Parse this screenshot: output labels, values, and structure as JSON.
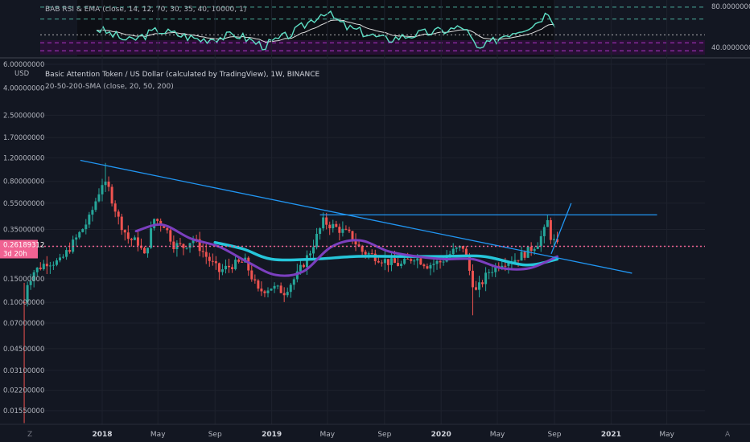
{
  "rsi_pane": {
    "legend": "BAB RSI & EMA (close, 14, 12, 70, 30, 35, 40, 10000, 1)",
    "axis_labels": [
      "80.00000000",
      "40.00000000"
    ]
  },
  "main_pane": {
    "axis_unit": "USD",
    "title": "Basic Attention Token / US Dollar (calculated by TradingView), 1W, BINANCE",
    "indicator": "20-50-200-SMA (close, 20, 50, 200)",
    "last_price": "0.26189312",
    "countdown": "3d 20h",
    "corner_left": "Z",
    "corner_right": "A"
  },
  "colors": {
    "background": "#131722",
    "up": "#26a69a",
    "down": "#ef5350",
    "sma20": "#7b3fbf",
    "sma50": "#26c6da",
    "trendline": "#2196f3",
    "price_line": "#f06292",
    "rsi": "#5ee0c6",
    "rsi_ema": "#e0e0e0",
    "rsi_band": "#4a1a5a"
  },
  "chart_data": {
    "type": "candlestick",
    "scale": "log",
    "ylim": [
      0.012,
      6.0
    ],
    "y_ticks": [
      "6.00000000",
      "4.00000000",
      "2.50000000",
      "1.70000000",
      "1.20000000",
      "0.80000000",
      "0.55000000",
      "0.35000000",
      "0.26189312",
      "0.15000000",
      "0.10000000",
      "0.07000000",
      "0.04500000",
      "0.03100000",
      "0.02200000",
      "0.01550000"
    ],
    "y_tick_values": [
      6.0,
      4.0,
      2.5,
      1.7,
      1.2,
      0.8,
      0.55,
      0.35,
      0.26189312,
      0.15,
      0.1,
      0.07,
      0.045,
      0.031,
      0.022,
      0.0155
    ],
    "x_ticks": [
      {
        "label": "2018",
        "date": "2018-01-01"
      },
      {
        "label": "May",
        "date": "2018-05-01"
      },
      {
        "label": "Sep",
        "date": "2018-09-01"
      },
      {
        "label": "2019",
        "date": "2019-01-01"
      },
      {
        "label": "May",
        "date": "2019-05-01"
      },
      {
        "label": "Sep",
        "date": "2019-09-01"
      },
      {
        "label": "2020",
        "date": "2020-01-01"
      },
      {
        "label": "May",
        "date": "2020-05-01"
      },
      {
        "label": "Sep",
        "date": "2020-09-01"
      },
      {
        "label": "2021",
        "date": "2021-01-01"
      },
      {
        "label": "May",
        "date": "2021-05-01"
      }
    ],
    "close_path": [
      {
        "date": "2017-07-17",
        "v": 0.1
      },
      {
        "date": "2017-07-24",
        "v": 0.14
      },
      {
        "date": "2017-08-07",
        "v": 0.17
      },
      {
        "date": "2017-09-04",
        "v": 0.2
      },
      {
        "date": "2017-10-02",
        "v": 0.2
      },
      {
        "date": "2017-11-06",
        "v": 0.3
      },
      {
        "date": "2017-12-04",
        "v": 0.42
      },
      {
        "date": "2018-01-01",
        "v": 0.78
      },
      {
        "date": "2018-01-15",
        "v": 0.7
      },
      {
        "date": "2018-02-05",
        "v": 0.42
      },
      {
        "date": "2018-02-26",
        "v": 0.3
      },
      {
        "date": "2018-03-19",
        "v": 0.28
      },
      {
        "date": "2018-04-02",
        "v": 0.22
      },
      {
        "date": "2018-04-23",
        "v": 0.42
      },
      {
        "date": "2018-05-14",
        "v": 0.38
      },
      {
        "date": "2018-06-04",
        "v": 0.27
      },
      {
        "date": "2018-06-25",
        "v": 0.26
      },
      {
        "date": "2018-07-16",
        "v": 0.3
      },
      {
        "date": "2018-08-13",
        "v": 0.22
      },
      {
        "date": "2018-09-10",
        "v": 0.17
      },
      {
        "date": "2018-10-08",
        "v": 0.19
      },
      {
        "date": "2018-11-05",
        "v": 0.2
      },
      {
        "date": "2018-12-03",
        "v": 0.12
      },
      {
        "date": "2018-12-31",
        "v": 0.13
      },
      {
        "date": "2019-01-28",
        "v": 0.12
      },
      {
        "date": "2019-02-25",
        "v": 0.16
      },
      {
        "date": "2019-03-25",
        "v": 0.24
      },
      {
        "date": "2019-04-22",
        "v": 0.4
      },
      {
        "date": "2019-05-20",
        "v": 0.36
      },
      {
        "date": "2019-06-17",
        "v": 0.32
      },
      {
        "date": "2019-07-15",
        "v": 0.24
      },
      {
        "date": "2019-08-12",
        "v": 0.22
      },
      {
        "date": "2019-09-09",
        "v": 0.2
      },
      {
        "date": "2019-10-07",
        "v": 0.19
      },
      {
        "date": "2019-11-04",
        "v": 0.22
      },
      {
        "date": "2019-12-02",
        "v": 0.19
      },
      {
        "date": "2019-12-30",
        "v": 0.2
      },
      {
        "date": "2020-01-27",
        "v": 0.24
      },
      {
        "date": "2020-02-17",
        "v": 0.26
      },
      {
        "date": "2020-03-09",
        "v": 0.14
      },
      {
        "date": "2020-03-16",
        "v": 0.12
      },
      {
        "date": "2020-04-13",
        "v": 0.17
      },
      {
        "date": "2020-05-11",
        "v": 0.2
      },
      {
        "date": "2020-06-08",
        "v": 0.21
      },
      {
        "date": "2020-07-06",
        "v": 0.24
      },
      {
        "date": "2020-07-27",
        "v": 0.28
      },
      {
        "date": "2020-08-10",
        "v": 0.34
      },
      {
        "date": "2020-08-17",
        "v": 0.4
      },
      {
        "date": "2020-08-24",
        "v": 0.31
      },
      {
        "date": "2020-09-07",
        "v": 0.262
      }
    ],
    "sma20": [
      {
        "date": "2018-03-15",
        "v": 0.34
      },
      {
        "date": "2018-05-10",
        "v": 0.38
      },
      {
        "date": "2018-07-10",
        "v": 0.3
      },
      {
        "date": "2018-09-10",
        "v": 0.26
      },
      {
        "date": "2018-11-10",
        "v": 0.2
      },
      {
        "date": "2019-01-10",
        "v": 0.16
      },
      {
        "date": "2019-03-10",
        "v": 0.17
      },
      {
        "date": "2019-05-10",
        "v": 0.26
      },
      {
        "date": "2019-07-10",
        "v": 0.29
      },
      {
        "date": "2019-09-10",
        "v": 0.24
      },
      {
        "date": "2019-11-10",
        "v": 0.22
      },
      {
        "date": "2020-01-10",
        "v": 0.21
      },
      {
        "date": "2020-03-10",
        "v": 0.21
      },
      {
        "date": "2020-05-10",
        "v": 0.18
      },
      {
        "date": "2020-07-10",
        "v": 0.18
      },
      {
        "date": "2020-09-07",
        "v": 0.22
      }
    ],
    "sma50": [
      {
        "date": "2018-09-01",
        "v": 0.28
      },
      {
        "date": "2018-11-01",
        "v": 0.25
      },
      {
        "date": "2019-01-01",
        "v": 0.21
      },
      {
        "date": "2019-04-01",
        "v": 0.21
      },
      {
        "date": "2019-07-01",
        "v": 0.22
      },
      {
        "date": "2019-10-01",
        "v": 0.22
      },
      {
        "date": "2020-01-01",
        "v": 0.22
      },
      {
        "date": "2020-04-01",
        "v": 0.22
      },
      {
        "date": "2020-07-01",
        "v": 0.19
      },
      {
        "date": "2020-09-07",
        "v": 0.21
      }
    ],
    "trendlines": [
      {
        "from": {
          "date": "2017-11-15",
          "v": 1.15
        },
        "to": {
          "date": "2021-02-15",
          "v": 0.165
        }
      },
      {
        "from": {
          "date": "2019-04-15",
          "v": 0.45
        },
        "to": {
          "date": "2021-04-10",
          "v": 0.45
        }
      },
      {
        "from": {
          "date": "2020-08-25",
          "v": 0.23
        },
        "to": {
          "date": "2020-10-07",
          "v": 0.55
        }
      }
    ],
    "rsi_axis_ticks": [
      80,
      40
    ],
    "rsi_levels": [
      85,
      70,
      50,
      40,
      30
    ],
    "rsi_ylim": [
      25,
      90
    ]
  }
}
